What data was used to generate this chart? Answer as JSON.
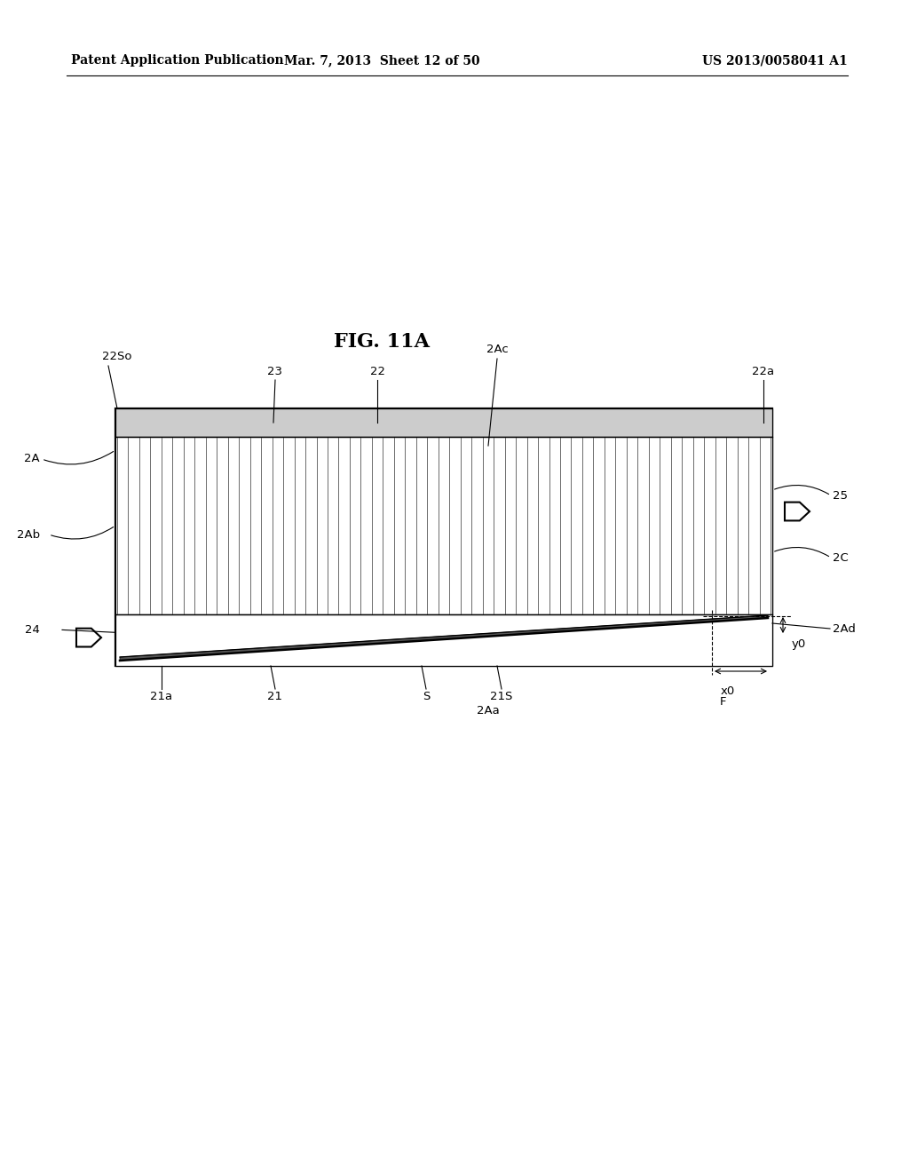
{
  "bg_color": "#ffffff",
  "header_left": "Patent Application Publication",
  "header_mid": "Mar. 7, 2013  Sheet 12 of 50",
  "header_right": "US 2013/0058041 A1",
  "fig_title": "FIG. 11A",
  "num_fins": 60,
  "lw_main": 1.6,
  "lw_thin": 0.9,
  "outline_color": "#000000",
  "fin_color": "#444444",
  "top_strip_color": "#d0d0d0"
}
